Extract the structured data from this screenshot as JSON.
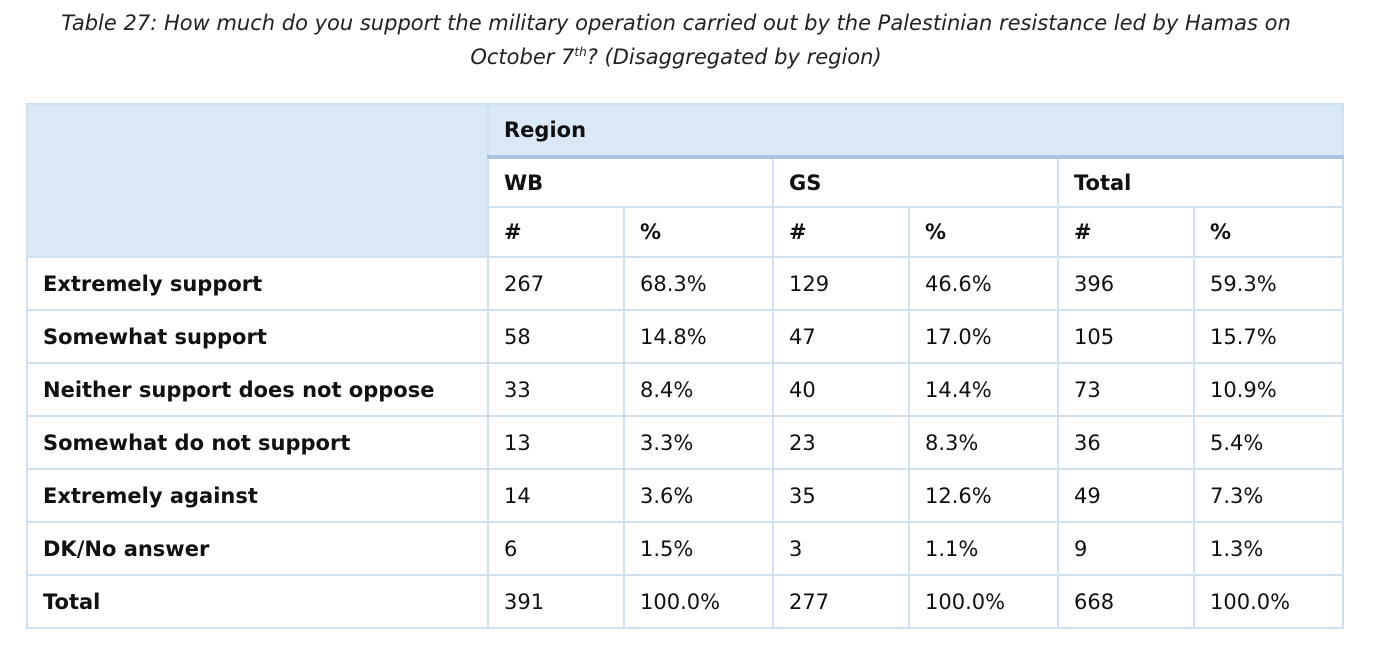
{
  "caption": {
    "line1": "Table 27: How much do you support the military operation carried out by the Palestinian resistance led by Hamas on",
    "line2_pre": "October 7",
    "line2_sup": "th",
    "line2_post": "? (Disaggregated by region)"
  },
  "table": {
    "region_label": "Region",
    "groups": [
      "WB",
      "GS",
      "Total"
    ],
    "units": [
      "#",
      "%",
      "#",
      "%",
      "#",
      "%"
    ],
    "rows": [
      {
        "label": "Extremely support",
        "cells": [
          "267",
          "68.3%",
          "129",
          "46.6%",
          "396",
          "59.3%"
        ]
      },
      {
        "label": "Somewhat support",
        "cells": [
          "58",
          "14.8%",
          "47",
          "17.0%",
          "105",
          "15.7%"
        ]
      },
      {
        "label": "Neither support does not oppose",
        "cells": [
          "33",
          "8.4%",
          "40",
          "14.4%",
          "73",
          "10.9%"
        ]
      },
      {
        "label": "Somewhat do not support",
        "cells": [
          "13",
          "3.3%",
          "23",
          "8.3%",
          "36",
          "5.4%"
        ]
      },
      {
        "label": "Extremely against",
        "cells": [
          "14",
          "3.6%",
          "35",
          "12.6%",
          "49",
          "7.3%"
        ]
      },
      {
        "label": "DK/No answer",
        "cells": [
          "6",
          "1.5%",
          "3",
          "1.1%",
          "9",
          "1.3%"
        ]
      },
      {
        "label": "Total",
        "cells": [
          "391",
          "100.0%",
          "277",
          "100.0%",
          "668",
          "100.0%"
        ]
      }
    ]
  },
  "colors": {
    "header_fill": "#dae7f5",
    "grid_line": "#cfe0f1",
    "region_rule": "#a8c5e4"
  }
}
